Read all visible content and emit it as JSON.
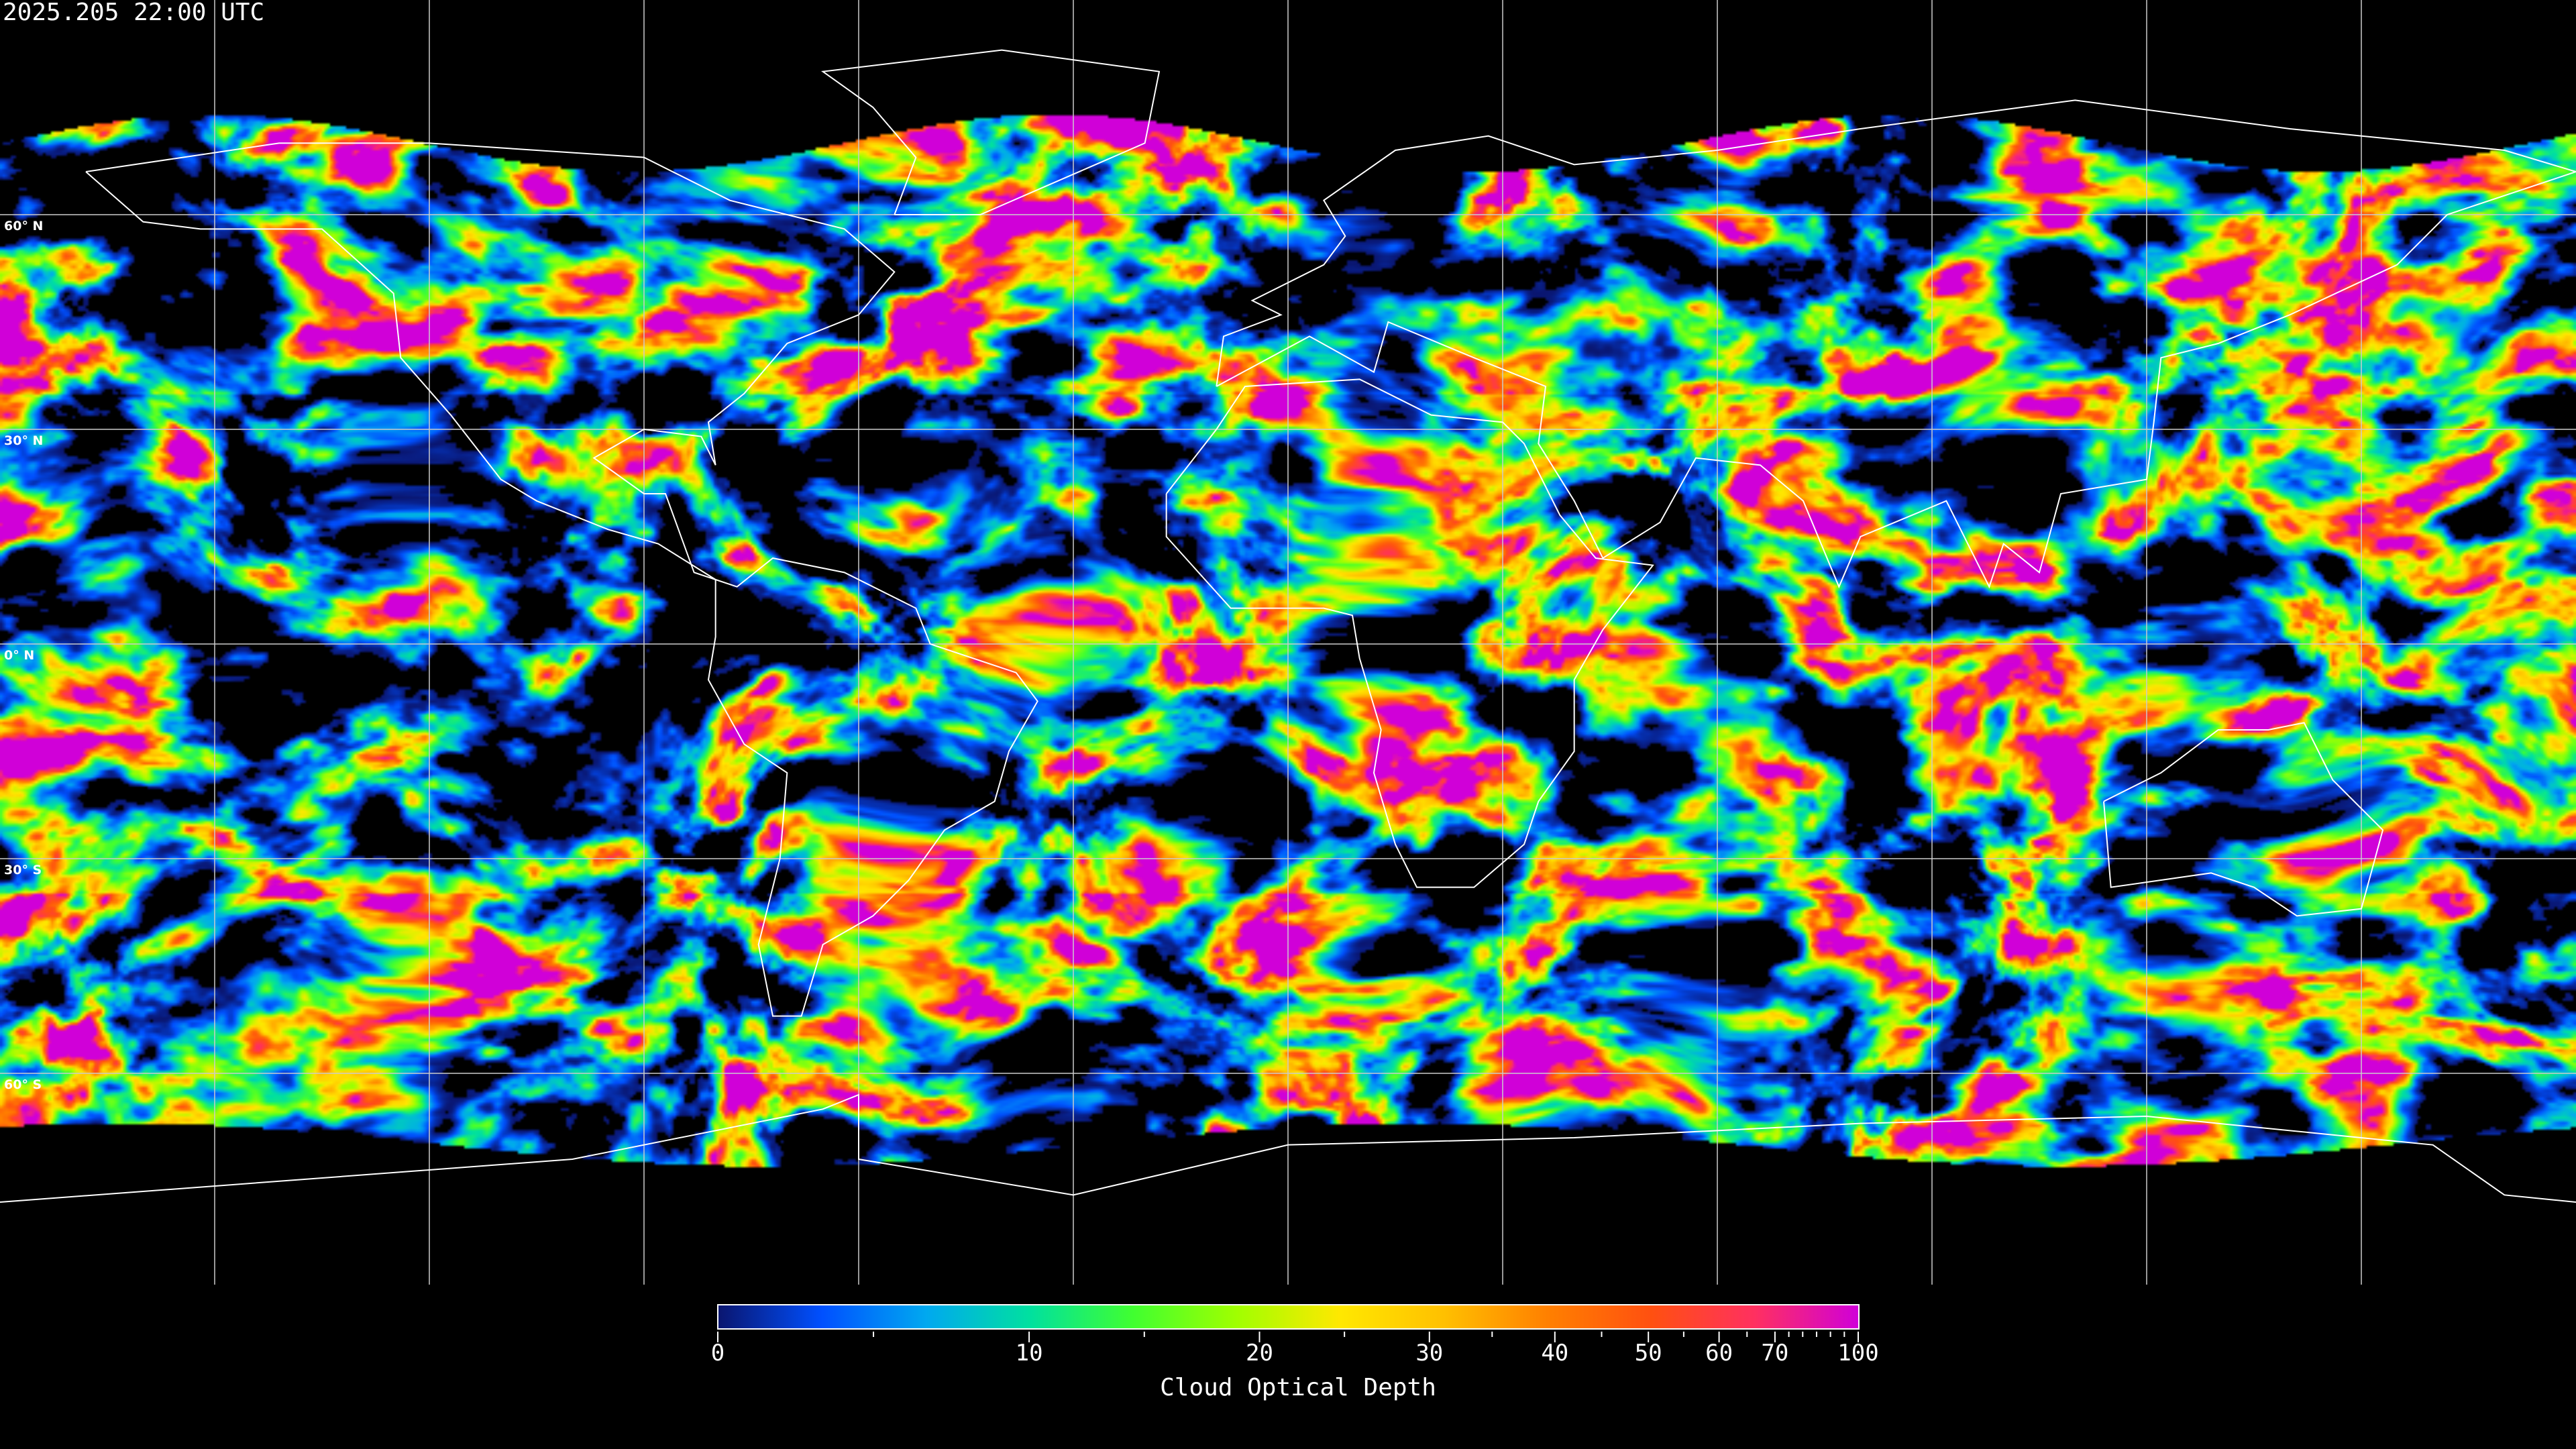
{
  "title": "2025.205 22:00 UTC",
  "map": {
    "projection": "equirectangular",
    "gridlines": {
      "longitude_step_deg": 30,
      "latitude_step_deg": 30
    },
    "lat_labels": [
      "60° N",
      "30° N",
      "0° N",
      "30° S",
      "60° S"
    ],
    "lat_values": [
      60,
      30,
      0,
      -30,
      -60
    ],
    "coastline_color": "#ffffff",
    "no_data_color": "#000000"
  },
  "colorbar": {
    "label": "Cloud Optical Depth",
    "range": [
      0,
      100
    ],
    "major_ticks": [
      "0",
      "10",
      "20",
      "30",
      "40",
      "50",
      "60",
      "70",
      "100"
    ],
    "major_tick_values": [
      0,
      10,
      20,
      30,
      40,
      50,
      60,
      70,
      100
    ],
    "minor_tick_values": [
      5,
      15,
      25,
      35,
      45,
      55,
      65,
      75,
      80,
      85,
      90,
      95
    ],
    "colors": [
      "#0a1670",
      "#0050ff",
      "#00a8f0",
      "#00e0a0",
      "#40ff30",
      "#a0ff00",
      "#ffe800",
      "#ffc000",
      "#ff8000",
      "#ff5010",
      "#ff3060",
      "#d000d8"
    ]
  }
}
